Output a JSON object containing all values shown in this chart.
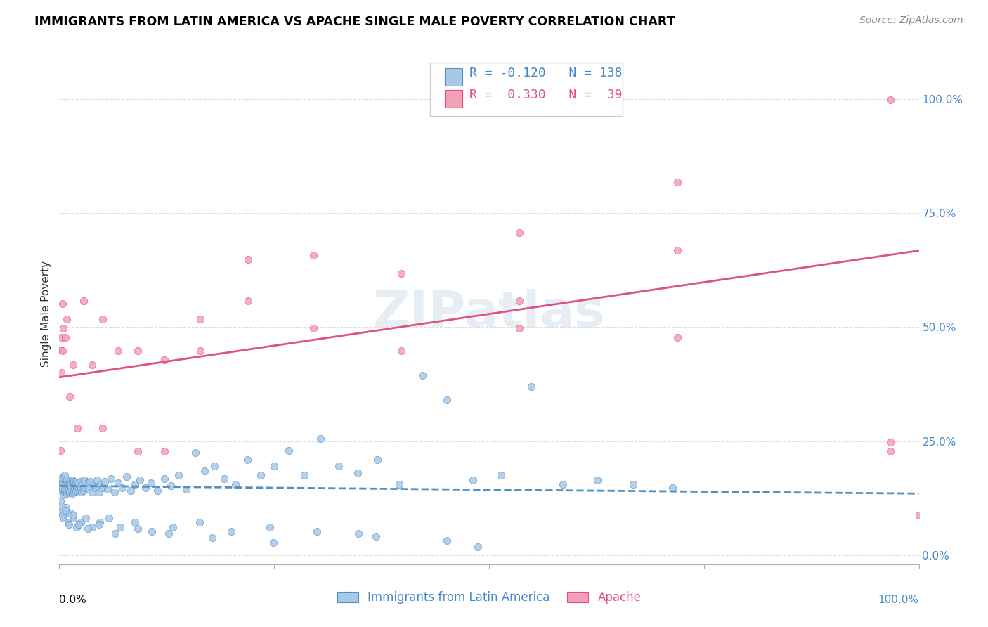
{
  "title": "IMMIGRANTS FROM LATIN AMERICA VS APACHE SINGLE MALE POVERTY CORRELATION CHART",
  "source": "Source: ZipAtlas.com",
  "ylabel": "Single Male Poverty",
  "legend_label1": "Immigrants from Latin America",
  "legend_label2": "Apache",
  "r1": -0.12,
  "n1": 138,
  "r2": 0.33,
  "n2": 39,
  "color_blue": "#a8c8e8",
  "color_pink": "#f4a0b8",
  "color_blue_dark": "#5090c0",
  "color_pink_dark": "#e05080",
  "color_blue_text": "#4488cc",
  "color_pink_text": "#e05080",
  "watermark": "ZIPatlas",
  "blue_scatter_x": [
    0.001,
    0.002,
    0.002,
    0.003,
    0.003,
    0.004,
    0.004,
    0.005,
    0.005,
    0.006,
    0.006,
    0.007,
    0.007,
    0.008,
    0.008,
    0.009,
    0.009,
    0.01,
    0.01,
    0.011,
    0.011,
    0.012,
    0.012,
    0.013,
    0.013,
    0.014,
    0.014,
    0.015,
    0.015,
    0.016,
    0.016,
    0.017,
    0.017,
    0.018,
    0.018,
    0.019,
    0.019,
    0.02,
    0.02,
    0.021,
    0.022,
    0.023,
    0.024,
    0.025,
    0.026,
    0.027,
    0.028,
    0.029,
    0.03,
    0.032,
    0.034,
    0.036,
    0.038,
    0.04,
    0.042,
    0.044,
    0.046,
    0.048,
    0.05,
    0.053,
    0.056,
    0.06,
    0.064,
    0.068,
    0.073,
    0.078,
    0.083,
    0.088,
    0.094,
    0.1,
    0.107,
    0.114,
    0.122,
    0.13,
    0.139,
    0.148,
    0.158,
    0.169,
    0.18,
    0.192,
    0.205,
    0.219,
    0.234,
    0.25,
    0.267,
    0.285,
    0.304,
    0.325,
    0.347,
    0.37,
    0.395,
    0.422,
    0.451,
    0.481,
    0.514,
    0.549,
    0.586,
    0.626,
    0.668,
    0.713,
    0.001,
    0.003,
    0.005,
    0.008,
    0.01,
    0.013,
    0.016,
    0.02,
    0.025,
    0.031,
    0.038,
    0.047,
    0.058,
    0.071,
    0.088,
    0.108,
    0.132,
    0.163,
    0.2,
    0.245,
    0.3,
    0.368,
    0.451,
    0.002,
    0.004,
    0.007,
    0.011,
    0.016,
    0.023,
    0.033,
    0.046,
    0.065,
    0.091,
    0.127,
    0.178,
    0.249,
    0.348,
    0.487
  ],
  "blue_scatter_y": [
    0.155,
    0.148,
    0.162,
    0.14,
    0.17,
    0.145,
    0.158,
    0.132,
    0.168,
    0.142,
    0.175,
    0.138,
    0.16,
    0.145,
    0.155,
    0.135,
    0.165,
    0.14,
    0.15,
    0.145,
    0.158,
    0.138,
    0.162,
    0.142,
    0.155,
    0.148,
    0.152,
    0.135,
    0.165,
    0.142,
    0.158,
    0.138,
    0.162,
    0.145,
    0.155,
    0.14,
    0.16,
    0.148,
    0.152,
    0.142,
    0.158,
    0.145,
    0.162,
    0.148,
    0.138,
    0.155,
    0.142,
    0.165,
    0.148,
    0.158,
    0.145,
    0.162,
    0.138,
    0.155,
    0.148,
    0.165,
    0.138,
    0.155,
    0.148,
    0.162,
    0.145,
    0.168,
    0.138,
    0.158,
    0.148,
    0.172,
    0.142,
    0.155,
    0.165,
    0.148,
    0.158,
    0.142,
    0.168,
    0.152,
    0.175,
    0.145,
    0.225,
    0.185,
    0.195,
    0.168,
    0.155,
    0.21,
    0.175,
    0.195,
    0.23,
    0.175,
    0.255,
    0.195,
    0.18,
    0.21,
    0.155,
    0.395,
    0.34,
    0.165,
    0.175,
    0.37,
    0.155,
    0.165,
    0.155,
    0.148,
    0.118,
    0.095,
    0.082,
    0.105,
    0.072,
    0.092,
    0.082,
    0.062,
    0.072,
    0.082,
    0.062,
    0.072,
    0.082,
    0.062,
    0.072,
    0.052,
    0.062,
    0.072,
    0.052,
    0.062,
    0.052,
    0.042,
    0.032,
    0.108,
    0.088,
    0.098,
    0.068,
    0.088,
    0.068,
    0.058,
    0.068,
    0.048,
    0.058,
    0.048,
    0.038,
    0.028,
    0.048,
    0.018
  ],
  "pink_scatter_x": [
    0.001,
    0.002,
    0.002,
    0.003,
    0.004,
    0.004,
    0.005,
    0.007,
    0.009,
    0.012,
    0.016,
    0.021,
    0.028,
    0.038,
    0.05,
    0.05,
    0.068,
    0.091,
    0.091,
    0.122,
    0.122,
    0.164,
    0.164,
    0.22,
    0.22,
    0.296,
    0.296,
    0.398,
    0.398,
    0.535,
    0.535,
    0.535,
    0.719,
    0.719,
    0.719,
    0.967,
    0.967,
    0.967,
    1.0
  ],
  "pink_scatter_y": [
    0.23,
    0.45,
    0.4,
    0.478,
    0.448,
    0.552,
    0.498,
    0.478,
    0.518,
    0.348,
    0.418,
    0.278,
    0.558,
    0.418,
    0.518,
    0.278,
    0.448,
    0.448,
    0.228,
    0.228,
    0.428,
    0.448,
    0.518,
    0.558,
    0.648,
    0.658,
    0.498,
    0.618,
    0.448,
    0.498,
    0.558,
    0.708,
    0.478,
    0.668,
    0.818,
    0.248,
    0.228,
    0.998,
    0.088
  ],
  "xlim": [
    0.0,
    1.0
  ],
  "ylim": [
    -0.02,
    1.08
  ],
  "yticks": [
    0.0,
    0.25,
    0.5,
    0.75,
    1.0
  ],
  "ytick_labels_right": [
    "0.0%",
    "25.0%",
    "50.0%",
    "75.0%",
    "100.0%"
  ],
  "blue_trend_y_start": 0.152,
  "blue_trend_y_end": 0.135,
  "pink_trend_y_start": 0.39,
  "pink_trend_y_end": 0.668
}
